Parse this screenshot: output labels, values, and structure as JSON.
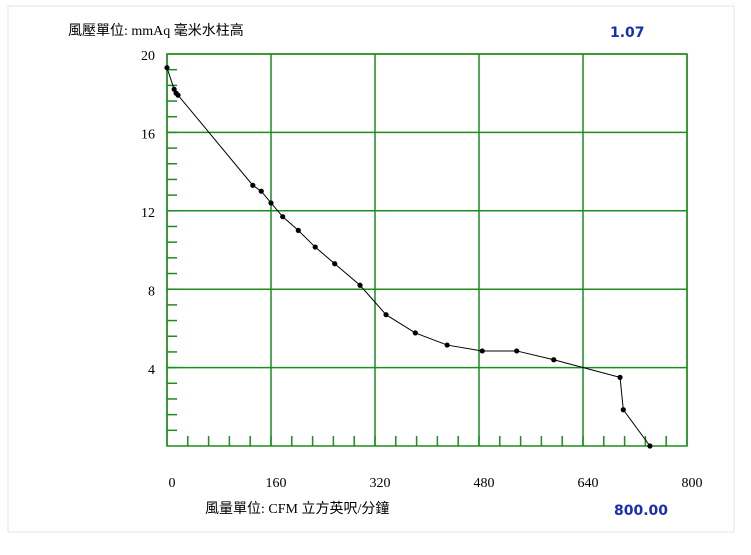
{
  "chart_data": {
    "type": "line",
    "y_label": "風壓單位: mmAq 毫米水柱高",
    "x_label": "風量單位:  CFM 立方英呎/分鐘",
    "readouts": [
      "1.07",
      "800.00"
    ],
    "x": [
      0,
      11,
      14,
      17,
      132,
      145,
      160,
      178,
      202,
      228,
      258,
      297,
      337,
      382,
      431,
      485,
      538,
      595,
      697,
      702,
      743
    ],
    "series": [
      {
        "color": "#000000",
        "values": [
          19.3,
          18.2,
          18.0,
          17.9,
          13.3,
          13.0,
          12.4,
          11.7,
          11.0,
          10.15,
          9.3,
          8.2,
          6.7,
          5.77,
          5.15,
          4.85,
          4.85,
          4.4,
          3.5,
          1.85,
          0
        ]
      }
    ],
    "xlim": [
      0,
      800
    ],
    "xticks": [
      0,
      160,
      320,
      480,
      640,
      800
    ],
    "ylim": [
      0,
      20
    ],
    "yticks": [
      4,
      8,
      12,
      16,
      20
    ],
    "grid": true,
    "grid_color": "#1e8c1e"
  }
}
